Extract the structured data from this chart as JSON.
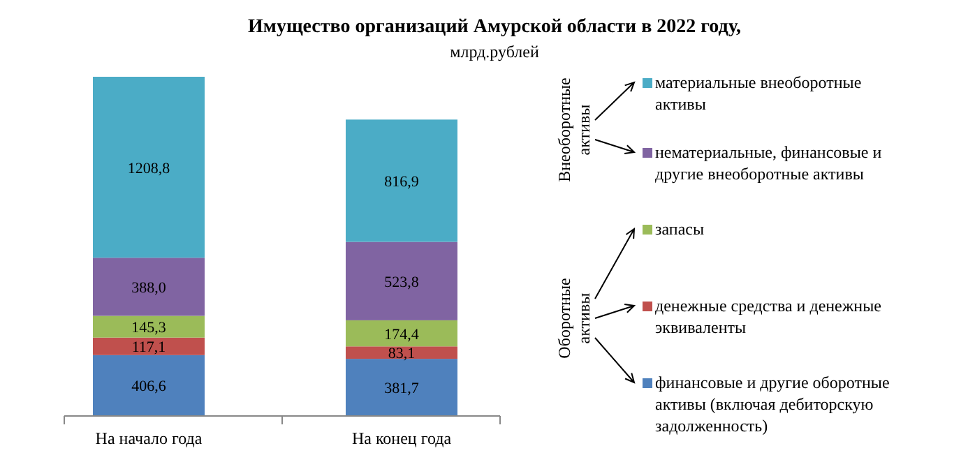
{
  "chart_data": {
    "type": "bar",
    "stacked": true,
    "title": "Имущество организаций Амурской области в 2022 году,",
    "subtitle": "млрд.рублей",
    "categories": [
      "На начало года",
      "На конец года"
    ],
    "legend": "right",
    "annotations": [
      "Внеоборотные активы",
      "Оборотные активы"
    ],
    "series": [
      {
        "name": "финансовые и другие оборотные активы (включая дебиторскую задолженность)",
        "color": "#4f81bd",
        "values": [
          406.6,
          381.7
        ],
        "value_labels": [
          "406,6",
          "381,7"
        ]
      },
      {
        "name": "денежные средства и денежные эквиваленты",
        "color": "#c0504d",
        "values": [
          117.1,
          83.1
        ],
        "value_labels": [
          "117,1",
          "83,1"
        ]
      },
      {
        "name": "запасы",
        "color": "#9bbb59",
        "values": [
          145.3,
          174.4
        ],
        "value_labels": [
          "145,3",
          "174,4"
        ]
      },
      {
        "name": "нематериальные, финансовые и другие внеоборотные активы",
        "color": "#8064a2",
        "values": [
          388.0,
          523.8
        ],
        "value_labels": [
          "388,0",
          "523,8"
        ]
      },
      {
        "name": "материальные внеоборотные активы",
        "color": "#4bacc6",
        "values": [
          1208.8,
          816.9
        ],
        "value_labels": [
          "1208,8",
          "816,9"
        ]
      }
    ]
  }
}
